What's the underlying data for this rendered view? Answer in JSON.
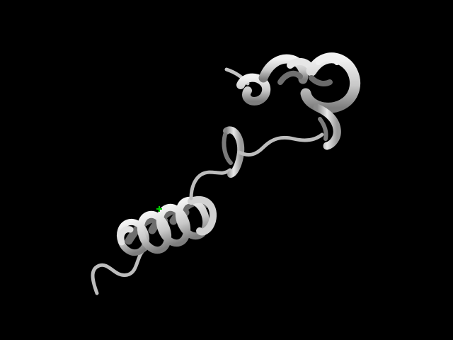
{
  "scene": {
    "type": "protein-cartoon-render",
    "background_color": "#000000",
    "ribbon_color": "#c8c8c8",
    "ribbon_shadow_color": "#7d7d7d",
    "center_marker_color": "#00cc00",
    "center_marker_icon": "plus-icon",
    "structures": [
      {
        "name": "n-terminal-loop"
      },
      {
        "name": "long-helix"
      },
      {
        "name": "linker-loop"
      },
      {
        "name": "short-helix-turn"
      },
      {
        "name": "loop"
      },
      {
        "name": "c-terminal-helix-cluster"
      }
    ]
  }
}
